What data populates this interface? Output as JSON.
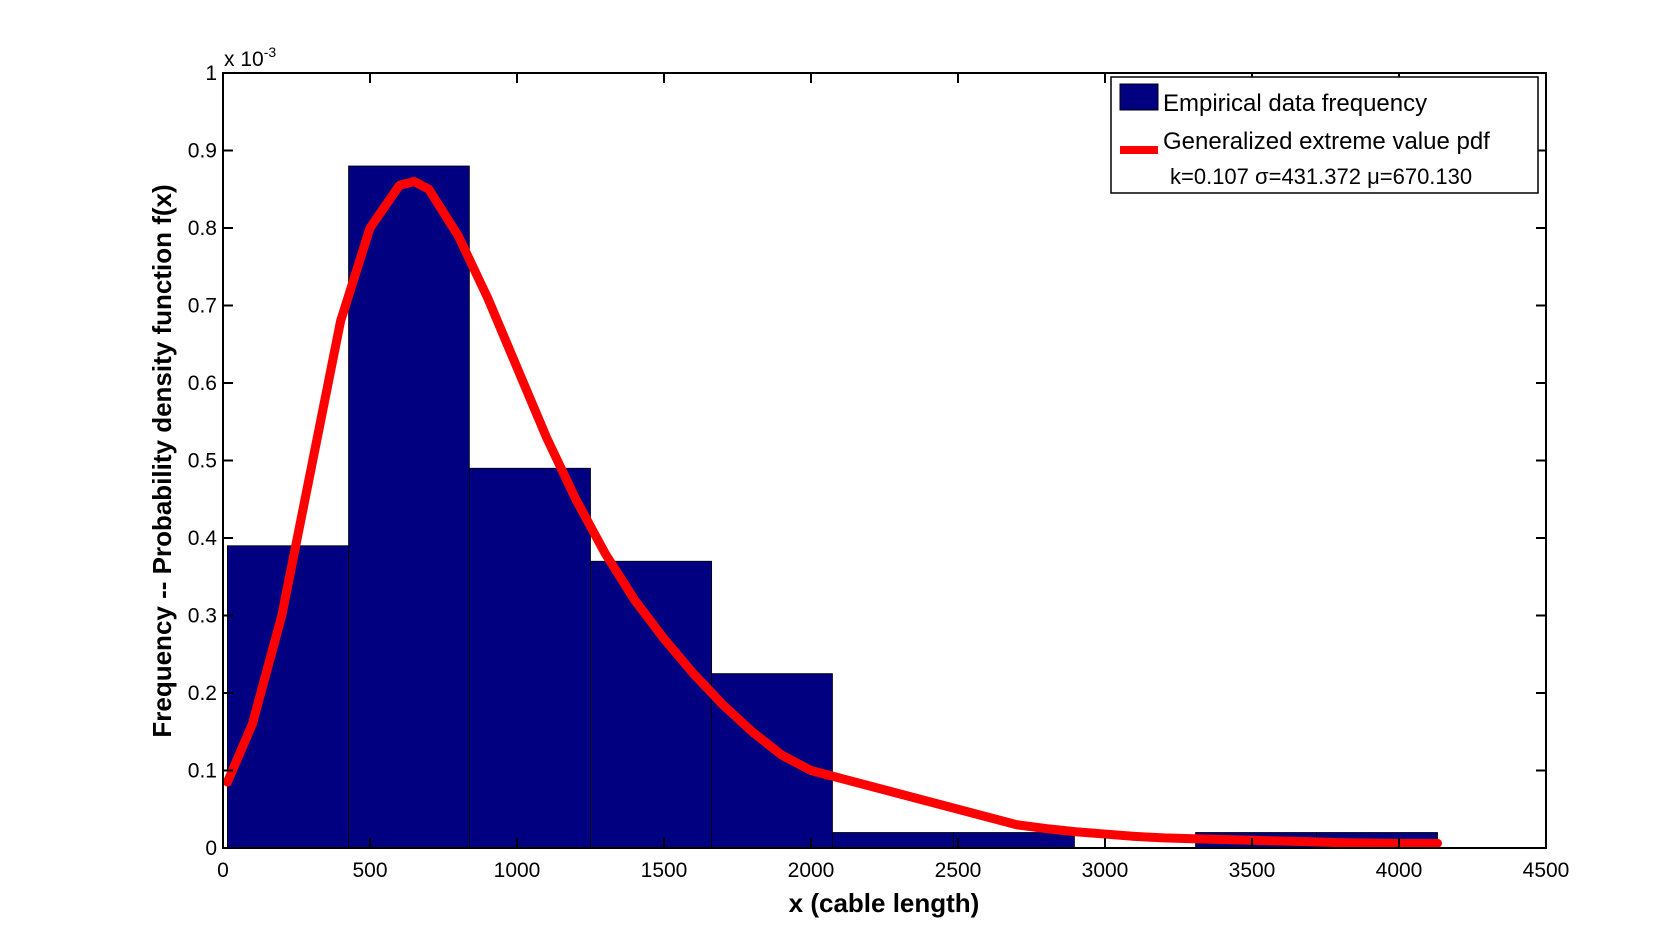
{
  "chart_data": {
    "type": "bar",
    "xlabel": "x (cable length)",
    "ylabel": "Frequency -- Probability density function f(x)",
    "y_exponent_label": "x 10",
    "y_exponent_power": "-3",
    "xlim": [
      0,
      4500
    ],
    "ylim": [
      0,
      1
    ],
    "x_ticks": [
      "0",
      "500",
      "1000",
      "1500",
      "2000",
      "2500",
      "3000",
      "3500",
      "4000",
      "4500"
    ],
    "y_ticks": [
      "0",
      "0.1",
      "0.2",
      "0.3",
      "0.4",
      "0.5",
      "0.6",
      "0.7",
      "0.8",
      "0.9",
      "1"
    ],
    "grid": false,
    "legend_position": "top-right",
    "histogram": {
      "name": "Empirical data frequency",
      "color": "#000080",
      "bin_edges": [
        15,
        427,
        838,
        1250,
        1662,
        2073,
        2485,
        2896,
        3308,
        3720,
        4131
      ],
      "values": [
        0.39,
        0.88,
        0.49,
        0.37,
        0.225,
        0.02,
        0.02,
        0.0,
        0.02,
        0.02
      ]
    },
    "curve": {
      "name": "Generalized extreme value pdf",
      "params_text": "k=0.107 σ=431.372 μ=670.130",
      "color": "#ff0000",
      "x": [
        15,
        100,
        200,
        300,
        400,
        500,
        600,
        650,
        700,
        800,
        900,
        1000,
        1100,
        1200,
        1300,
        1400,
        1500,
        1600,
        1700,
        1800,
        1900,
        2000,
        2100,
        2200,
        2300,
        2400,
        2500,
        2600,
        2700,
        2800,
        2900,
        3000,
        3100,
        3200,
        3300,
        3400,
        3500,
        3600,
        3700,
        3800,
        3900,
        4000,
        4131
      ],
      "y": [
        0.085,
        0.16,
        0.3,
        0.49,
        0.68,
        0.8,
        0.855,
        0.86,
        0.85,
        0.79,
        0.71,
        0.62,
        0.53,
        0.45,
        0.38,
        0.32,
        0.27,
        0.225,
        0.185,
        0.15,
        0.12,
        0.1,
        0.09,
        0.08,
        0.07,
        0.06,
        0.05,
        0.04,
        0.03,
        0.025,
        0.021,
        0.018,
        0.015,
        0.013,
        0.012,
        0.011,
        0.01,
        0.009,
        0.008,
        0.007,
        0.0065,
        0.006,
        0.006
      ]
    }
  }
}
